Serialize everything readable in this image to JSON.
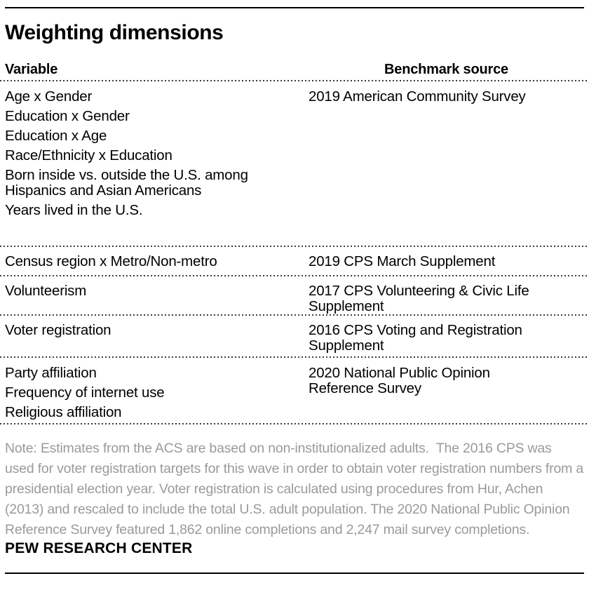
{
  "title": "Weighting dimensions",
  "table": {
    "columns": {
      "variable": "Variable",
      "benchmark": "Benchmark source"
    },
    "rows": [
      {
        "variables": [
          "Age x Gender",
          "Education x Gender",
          "Education x Age",
          "Race/Ethnicity x Education",
          "Born inside vs. outside the U.S. among Hispanics and Asian Americans",
          "Years lived in the U.S."
        ],
        "benchmark": "2019 American Community Survey"
      },
      {
        "variables": [
          "Census region x Metro/Non-metro"
        ],
        "benchmark": "2019 CPS March Supplement"
      },
      {
        "variables": [
          "Volunteerism"
        ],
        "benchmark": "2017 CPS Volunteering & Civic Life\nSupplement"
      },
      {
        "variables": [
          "Voter registration"
        ],
        "benchmark": "2016 CPS Voting and Registration\nSupplement"
      },
      {
        "variables": [
          "Party affiliation",
          "Frequency of internet use",
          "Religious affiliation"
        ],
        "benchmark": "2020 National Public Opinion\nReference Survey"
      }
    ]
  },
  "note": "Note: Estimates from the ACS are based on non-institutionalized adults.  The 2016 CPS was used for voter registration targets for this wave in order to obtain voter registration numbers from a presidential election year. Voter registration is calculated using procedures from Hur, Achen (2013) and rescaled to include the total U.S. adult population. The 2020 National Public Opinion Reference Survey featured 1,862 online completions and 2,247 mail survey completions.",
  "footer": {
    "brand": "PEW RESEARCH CENTER"
  },
  "colors": {
    "text": "#000000",
    "note_text": "#9a9a9a",
    "rule": "#000000",
    "dotted_rule": "#3c3c3c",
    "background": "#ffffff"
  }
}
